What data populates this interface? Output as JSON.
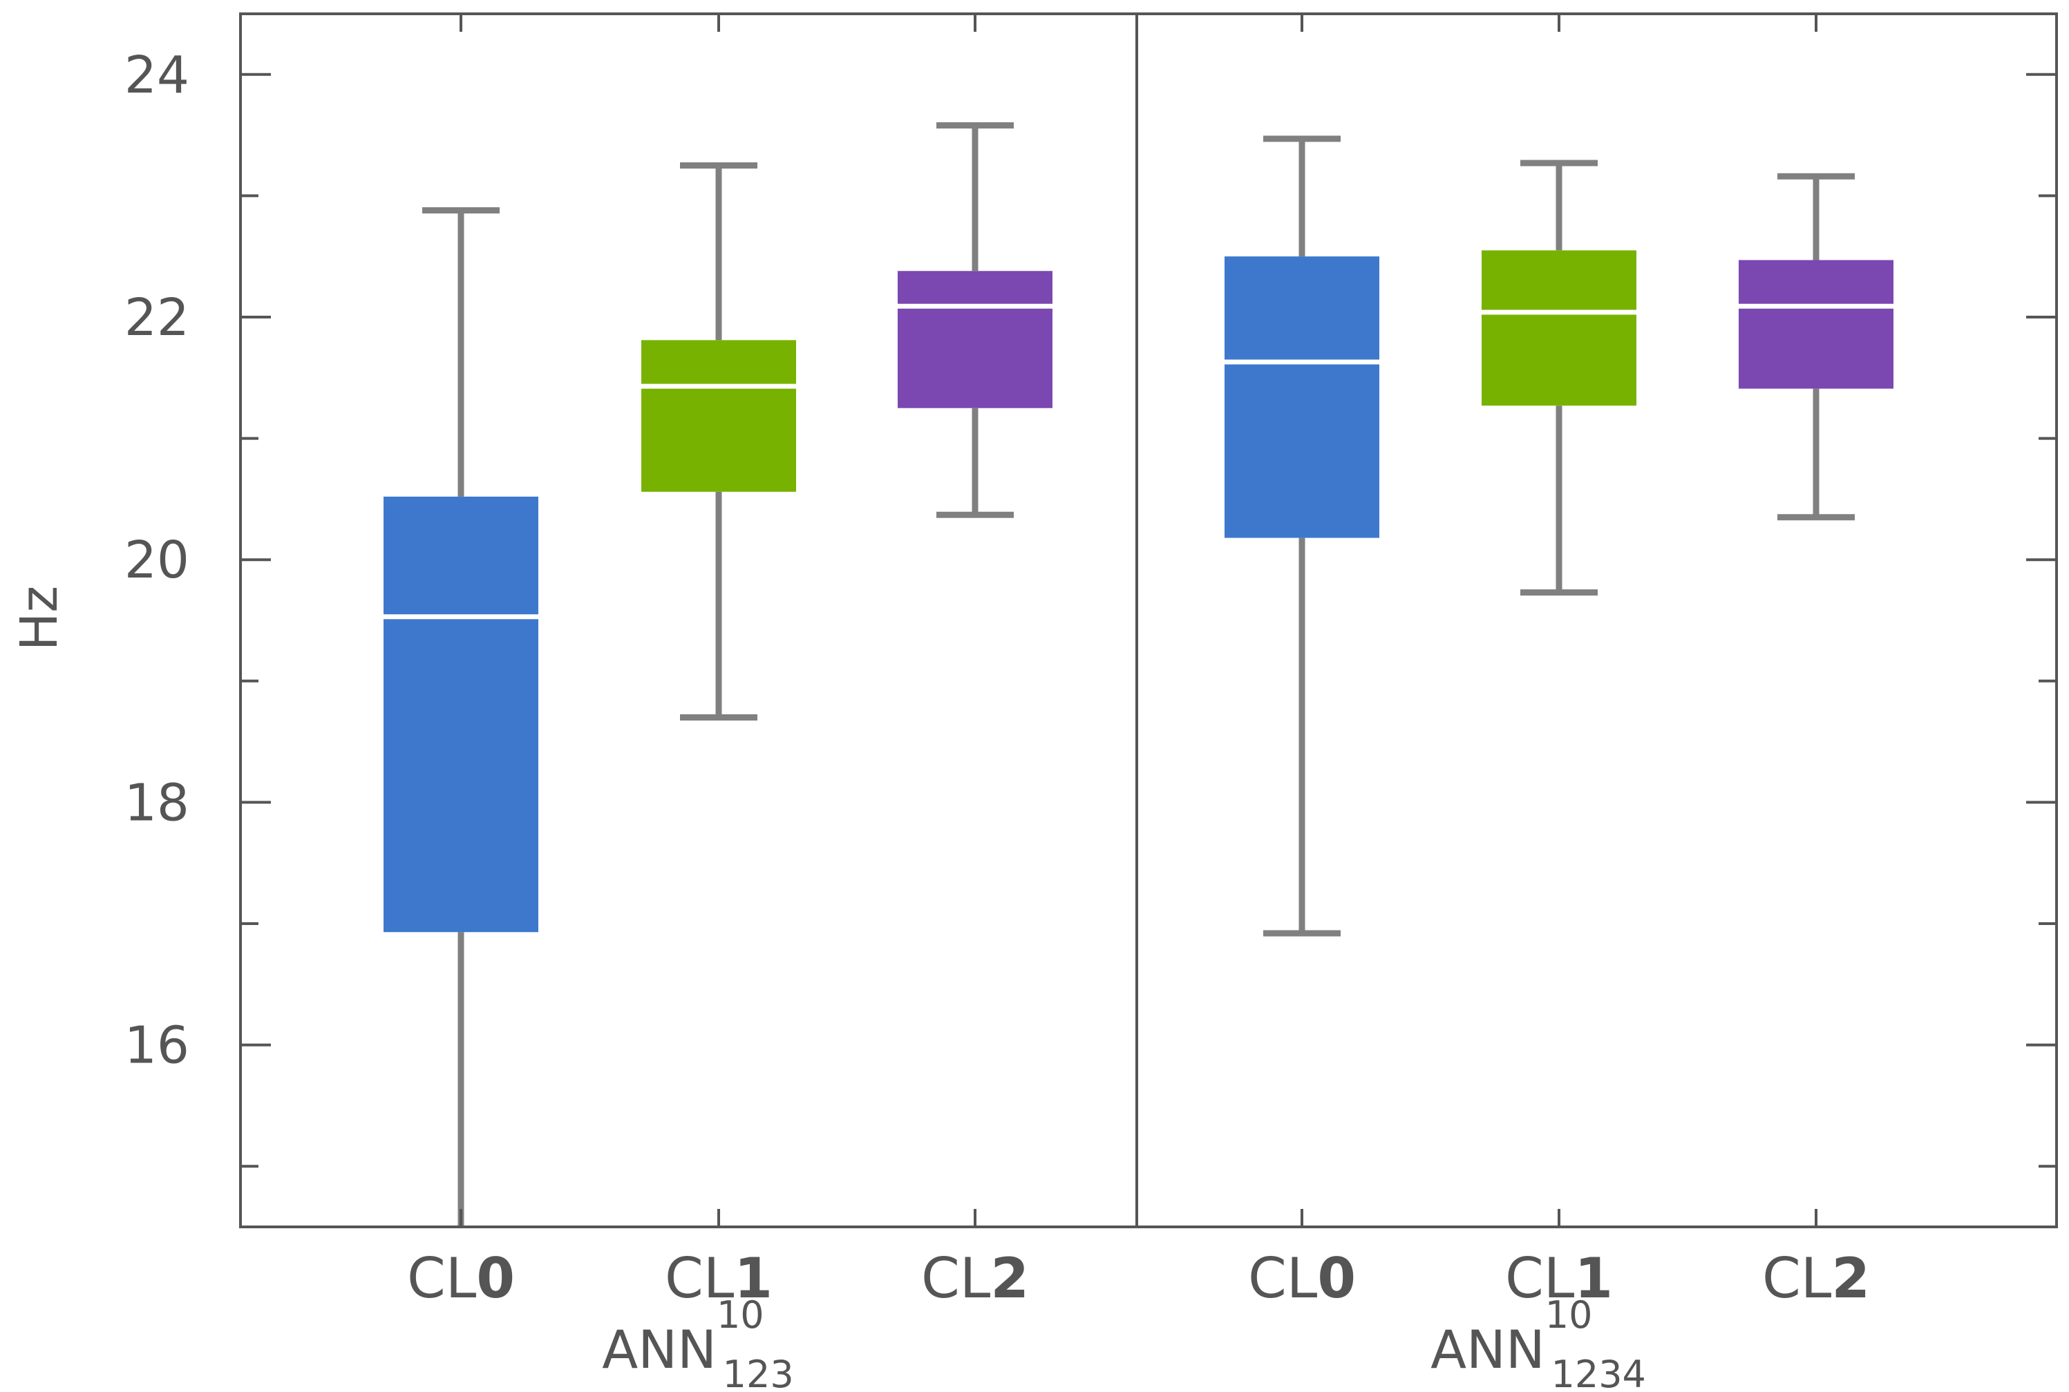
{
  "chart_data": {
    "type": "box",
    "title": "",
    "ylabel": "Hz",
    "xlabel": "",
    "ylim": [
      14.5,
      24.5
    ],
    "yticks": [
      16,
      18,
      20,
      22,
      24
    ],
    "colors": {
      "CL0": "#3d78cd",
      "CL1": "#78b200",
      "CL2": "#7b47b1",
      "whisker": "#808080",
      "frame": "#555555",
      "median": "#ffffff"
    },
    "groups": [
      {
        "name_base": "ANN",
        "name_sup": "10",
        "name_sub": "123",
        "boxes": [
          {
            "prefix": "CL",
            "num": "0",
            "color_key": "CL0",
            "whisker_low": 14.5,
            "q1": 16.93,
            "median": 19.53,
            "q3": 20.52,
            "whisker_high": 22.88,
            "low_cap": false
          },
          {
            "prefix": "CL",
            "num": "1",
            "color_key": "CL1",
            "whisker_low": 18.7,
            "q1": 20.56,
            "median": 21.43,
            "q3": 21.81,
            "whisker_high": 23.25,
            "low_cap": true
          },
          {
            "prefix": "CL",
            "num": "2",
            "color_key": "CL2",
            "whisker_low": 20.37,
            "q1": 21.25,
            "median": 22.09,
            "q3": 22.38,
            "whisker_high": 23.58,
            "low_cap": true
          }
        ]
      },
      {
        "name_base": "ANN",
        "name_sup": "10",
        "name_sub": "1234",
        "boxes": [
          {
            "prefix": "CL",
            "num": "0",
            "color_key": "CL0",
            "whisker_low": 16.92,
            "q1": 20.18,
            "median": 21.63,
            "q3": 22.5,
            "whisker_high": 23.47,
            "low_cap": true
          },
          {
            "prefix": "CL",
            "num": "1",
            "color_key": "CL1",
            "whisker_low": 19.73,
            "q1": 21.27,
            "median": 22.04,
            "q3": 22.55,
            "whisker_high": 23.27,
            "low_cap": true
          },
          {
            "prefix": "CL",
            "num": "2",
            "color_key": "CL2",
            "whisker_low": 20.35,
            "q1": 21.41,
            "median": 22.09,
            "q3": 22.47,
            "whisker_high": 23.16,
            "low_cap": true
          }
        ]
      }
    ]
  }
}
